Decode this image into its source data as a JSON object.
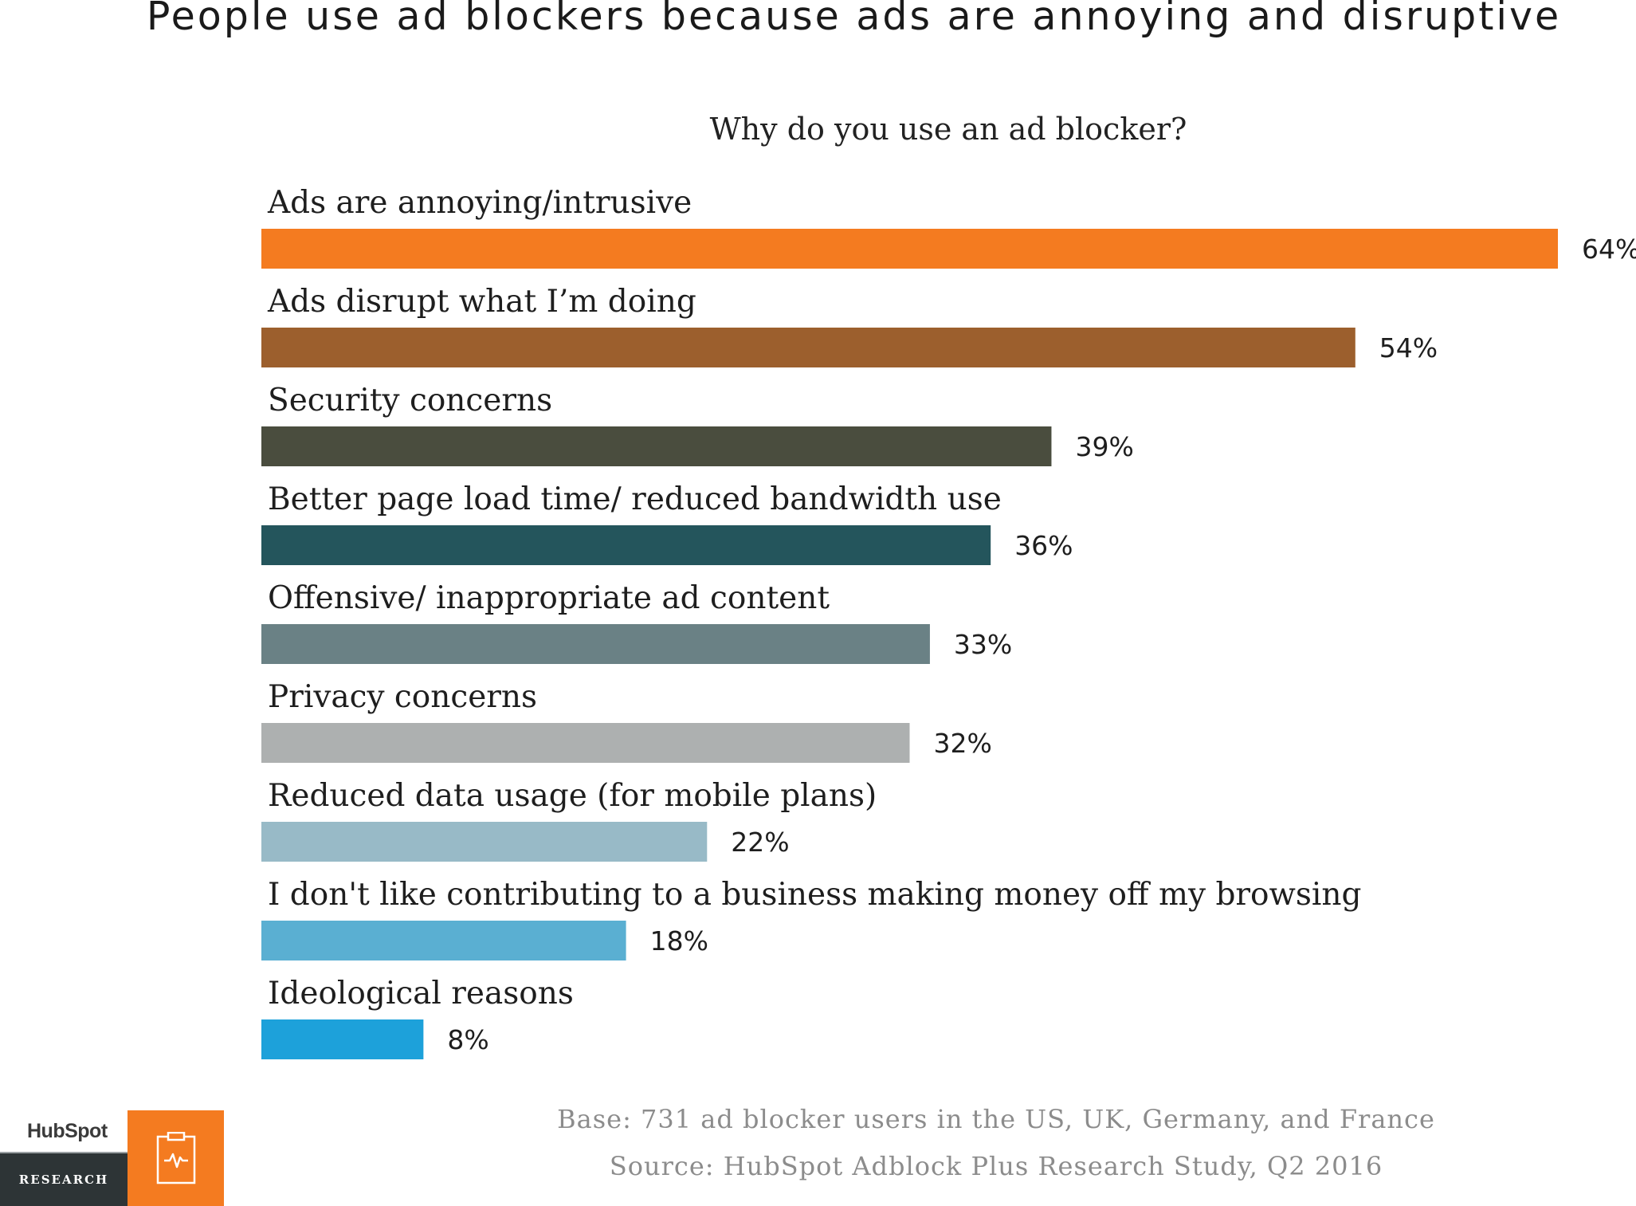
{
  "title": "People use ad blockers because ads are annoying and disruptive",
  "subtitle": "Why do you use an ad blocker?",
  "footer": {
    "base": "Base: 731 ad blocker users in the US, UK, Germany, and France",
    "source": "Source: HubSpot Adblock Plus Research Study, Q2 2016"
  },
  "logo": {
    "brand": "HubSpot",
    "label": "RESEARCH",
    "icon": "clipboard-pulse-icon"
  },
  "chart_data": {
    "type": "bar",
    "orientation": "horizontal",
    "title": "Why do you use an ad blocker?",
    "value_suffix": "%",
    "xlim": [
      0,
      64
    ],
    "grid": false,
    "legend": "none",
    "categories": [
      "Ads are annoying/intrusive",
      "Ads disrupt what I’m doing",
      "Security concerns",
      "Better page load time/ reduced bandwidth use",
      "Offensive/ inappropriate ad content",
      "Privacy concerns",
      "Reduced data usage (for mobile plans)",
      "I don't like contributing to a business making money off my browsing",
      "Ideological reasons"
    ],
    "values": [
      64,
      54,
      39,
      36,
      33,
      32,
      22,
      18,
      8
    ],
    "value_labels": [
      "64%",
      "54%",
      "39%",
      "36%",
      "33%",
      "32%",
      "22%",
      "18%",
      "8%"
    ],
    "colors": [
      "#f47b20",
      "#9c5f2d",
      "#4a4d3e",
      "#24555c",
      "#6a8185",
      "#adb0b0",
      "#98bac7",
      "#5aafd2",
      "#1da1da"
    ]
  }
}
